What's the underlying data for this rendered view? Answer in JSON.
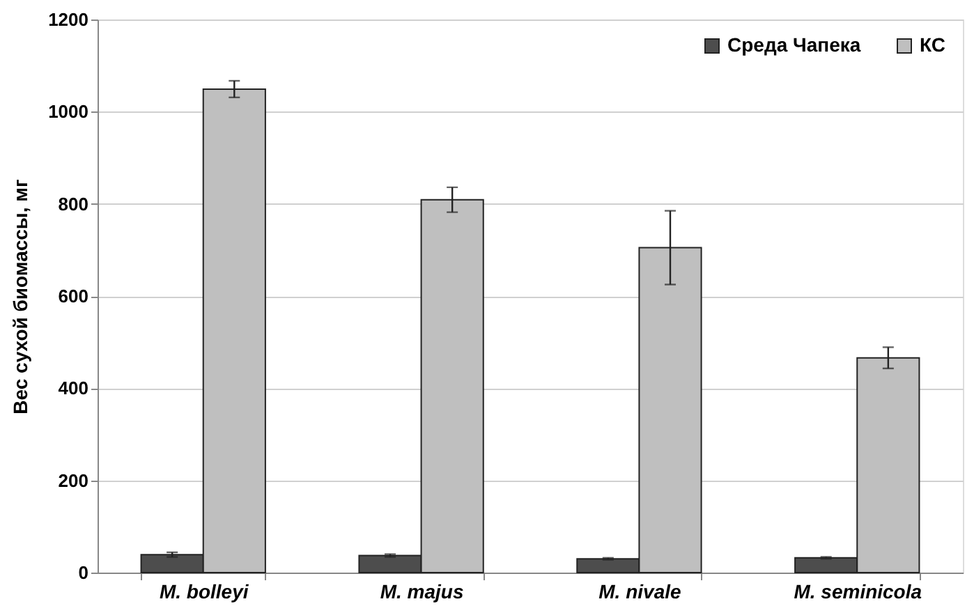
{
  "chart_data": {
    "type": "bar",
    "ylabel": "Вес сухой биомассы, мг",
    "categories": [
      "M. bolleyi",
      "M. majus",
      "M. nivale",
      "M. seminicola"
    ],
    "series": [
      {
        "name": "Среда Чапека",
        "color": "#4d4d4d",
        "values": [
          39,
          37,
          30,
          32
        ],
        "errors": [
          5,
          3,
          2,
          2
        ]
      },
      {
        "name": "КС",
        "color": "#bfbfbf",
        "values": [
          1049,
          809,
          705,
          466
        ],
        "errors": [
          18,
          27,
          80,
          23
        ]
      }
    ],
    "ylim": [
      0,
      1200
    ],
    "yticks": [
      0,
      200,
      400,
      600,
      800,
      1000,
      1200
    ],
    "grid": "y",
    "legend": "top right"
  }
}
